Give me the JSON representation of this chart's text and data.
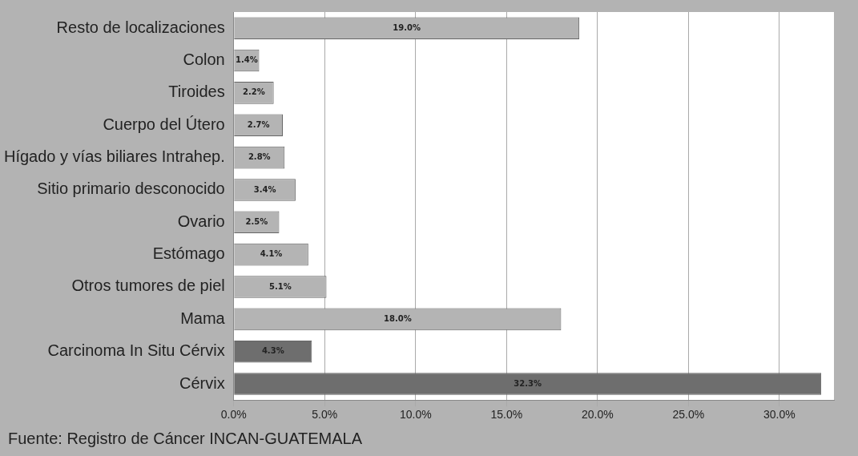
{
  "chart_data": {
    "type": "bar",
    "orientation": "horizontal",
    "categories": [
      "Resto de localizaciones",
      "Colon",
      "Tiroides",
      "Cuerpo del Útero",
      "Hígado y vías biliares Intrahep.",
      "Sitio primario desconocido",
      "Ovario",
      "Estómago",
      "Otros tumores de piel",
      "Mama",
      "Carcinoma In Situ Cérvix",
      "Cérvix"
    ],
    "values": [
      19.0,
      1.4,
      2.2,
      2.7,
      2.8,
      3.4,
      2.5,
      4.1,
      5.1,
      18.0,
      4.3,
      32.3
    ],
    "value_labels": [
      "19.0%",
      "1.4%",
      "2.2%",
      "2.7%",
      "2.8%",
      "3.4%",
      "2.5%",
      "4.1%",
      "5.1%",
      "18.0%",
      "4.3%",
      "32.3%"
    ],
    "colors": [
      "#b4b4b4",
      "#b4b4b4",
      "#b4b4b4",
      "#b4b4b4",
      "#b4b4b4",
      "#b4b4b4",
      "#b4b4b4",
      "#b4b4b4",
      "#b4b4b4",
      "#b4b4b4",
      "#6e6e6e",
      "#6e6e6e"
    ],
    "xlim": [
      0,
      33
    ],
    "xticks": [
      {
        "value": 0,
        "label": "0.0%"
      },
      {
        "value": 5,
        "label": "5.0%"
      },
      {
        "value": 10,
        "label": "10.0%"
      },
      {
        "value": 15,
        "label": "15.0%"
      },
      {
        "value": 20,
        "label": "20.0%"
      },
      {
        "value": 25,
        "label": "25.0%"
      },
      {
        "value": 30,
        "label": "30.0%"
      }
    ],
    "grid": "x",
    "legend": false,
    "annotations": [
      "Fuente: Registro de Cáncer INCAN-GUATEMALA"
    ]
  }
}
